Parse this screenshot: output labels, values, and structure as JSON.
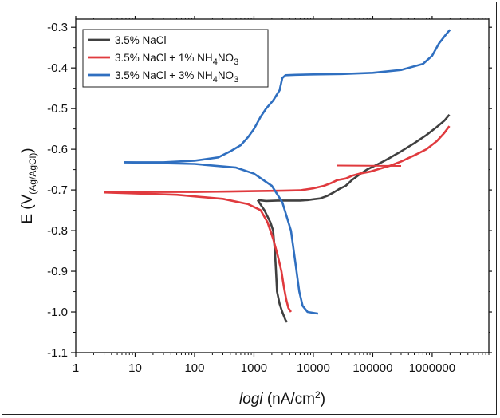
{
  "chart_data": {
    "type": "line",
    "x_scale": "log",
    "xlim": [
      1,
      9000000
    ],
    "ylim": [
      -1.1,
      -0.28
    ],
    "x_ticks": [
      "1",
      "10",
      "100",
      "1000",
      "10000",
      "100000",
      "1000000"
    ],
    "y_ticks": [
      "-1.1",
      "-1.0",
      "-0.9",
      "-0.8",
      "-0.7",
      "-0.6",
      "-0.5",
      "-0.4",
      "-0.3"
    ],
    "xlabel_italic": "logi",
    "xlabel_rest": " (nA/cm",
    "xlabel_sup": "2",
    "xlabel_close": ")",
    "ylabel_main": "E (V",
    "ylabel_sub": "(Ag/AgCl)",
    "ylabel_close": ")",
    "legend_position": "top-left",
    "series": [
      {
        "name": "3.5% NaCl",
        "legend": {
          "text": "3.5% NaCl",
          "sub1": "",
          "mid": "",
          "sub2": ""
        },
        "color": "#404040",
        "points": [
          [
            1150,
            -0.725
          ],
          [
            1600,
            -0.727
          ],
          [
            2500,
            -0.726
          ],
          [
            4000,
            -0.726
          ],
          [
            6000,
            -0.726
          ],
          [
            8000,
            -0.725
          ],
          [
            10000,
            -0.723
          ],
          [
            13000,
            -0.721
          ],
          [
            17000,
            -0.715
          ],
          [
            22000,
            -0.706
          ],
          [
            27000,
            -0.698
          ],
          [
            35000,
            -0.69
          ],
          [
            45000,
            -0.675
          ],
          [
            60000,
            -0.662
          ],
          [
            80000,
            -0.65
          ],
          [
            110000,
            -0.64
          ],
          [
            150000,
            -0.63
          ],
          [
            200000,
            -0.62
          ],
          [
            300000,
            -0.605
          ],
          [
            500000,
            -0.585
          ],
          [
            800000,
            -0.565
          ],
          [
            1200000,
            -0.545
          ],
          [
            1600000,
            -0.53
          ],
          [
            1950000,
            -0.515
          ]
        ],
        "cathodic": [
          [
            1150,
            -0.725
          ],
          [
            1500,
            -0.75
          ],
          [
            1900,
            -0.78
          ],
          [
            2100,
            -0.8
          ],
          [
            2250,
            -0.85
          ],
          [
            2350,
            -0.9
          ],
          [
            2450,
            -0.95
          ],
          [
            2700,
            -0.98
          ],
          [
            3000,
            -1.0
          ],
          [
            3400,
            -1.02
          ],
          [
            3600,
            -1.025
          ]
        ]
      },
      {
        "name": "3.5% NaCl + 1% NH4NO3",
        "legend": {
          "text": "3.5% NaCl + 1% NH",
          "sub1": "4",
          "mid": "NO",
          "sub2": "3"
        },
        "color": "#e03a3e",
        "points": [
          [
            3,
            -0.706
          ],
          [
            20,
            -0.705
          ],
          [
            100,
            -0.705
          ],
          [
            400,
            -0.704
          ],
          [
            1000,
            -0.703
          ],
          [
            3000,
            -0.702
          ],
          [
            6000,
            -0.701
          ],
          [
            10000,
            -0.696
          ],
          [
            15000,
            -0.69
          ],
          [
            20000,
            -0.683
          ],
          [
            25000,
            -0.676
          ],
          [
            35000,
            -0.672
          ],
          [
            45000,
            -0.665
          ],
          [
            60000,
            -0.66
          ],
          [
            90000,
            -0.655
          ],
          [
            130000,
            -0.648
          ],
          [
            200000,
            -0.64
          ],
          [
            300000,
            -0.63
          ],
          [
            500000,
            -0.615
          ],
          [
            800000,
            -0.6
          ],
          [
            1200000,
            -0.58
          ],
          [
            1600000,
            -0.56
          ],
          [
            1950000,
            -0.543
          ]
        ],
        "step": [
          [
            25000,
            -0.64
          ],
          [
            300000,
            -0.641
          ]
        ],
        "cathodic": [
          [
            3,
            -0.706
          ],
          [
            50,
            -0.712
          ],
          [
            300,
            -0.722
          ],
          [
            800,
            -0.735
          ],
          [
            1300,
            -0.75
          ],
          [
            1700,
            -0.78
          ],
          [
            2100,
            -0.82
          ],
          [
            2500,
            -0.86
          ],
          [
            2900,
            -0.9
          ],
          [
            3200,
            -0.94
          ],
          [
            3500,
            -0.97
          ],
          [
            3800,
            -0.99
          ],
          [
            4200,
            -1.0
          ]
        ]
      },
      {
        "name": "3.5% NaCl + 3% NH4NO3",
        "legend": {
          "text": "3.5% NaCl + 3% NH",
          "sub1": "4",
          "mid": "NO",
          "sub2": "3"
        },
        "color": "#2f6fc0",
        "points": [
          [
            6.5,
            -0.632
          ],
          [
            30,
            -0.632
          ],
          [
            100,
            -0.628
          ],
          [
            250,
            -0.62
          ],
          [
            400,
            -0.605
          ],
          [
            600,
            -0.59
          ],
          [
            800,
            -0.57
          ],
          [
            1000,
            -0.55
          ],
          [
            1300,
            -0.52
          ],
          [
            1600,
            -0.5
          ],
          [
            2100,
            -0.48
          ],
          [
            2700,
            -0.455
          ],
          [
            3000,
            -0.425
          ],
          [
            3400,
            -0.418
          ],
          [
            5000,
            -0.417
          ],
          [
            10000,
            -0.416
          ],
          [
            30000,
            -0.415
          ],
          [
            100000,
            -0.412
          ],
          [
            300000,
            -0.405
          ],
          [
            700000,
            -0.39
          ],
          [
            1000000,
            -0.37
          ],
          [
            1300000,
            -0.34
          ],
          [
            1700000,
            -0.318
          ],
          [
            2000000,
            -0.306
          ]
        ],
        "cathodic": [
          [
            6.5,
            -0.632
          ],
          [
            100,
            -0.636
          ],
          [
            500,
            -0.645
          ],
          [
            1000,
            -0.66
          ],
          [
            2000,
            -0.69
          ],
          [
            3000,
            -0.73
          ],
          [
            4200,
            -0.8
          ],
          [
            5000,
            -0.88
          ],
          [
            5800,
            -0.95
          ],
          [
            6600,
            -0.985
          ],
          [
            8000,
            -1.0
          ],
          [
            12000,
            -1.004
          ]
        ]
      }
    ]
  }
}
